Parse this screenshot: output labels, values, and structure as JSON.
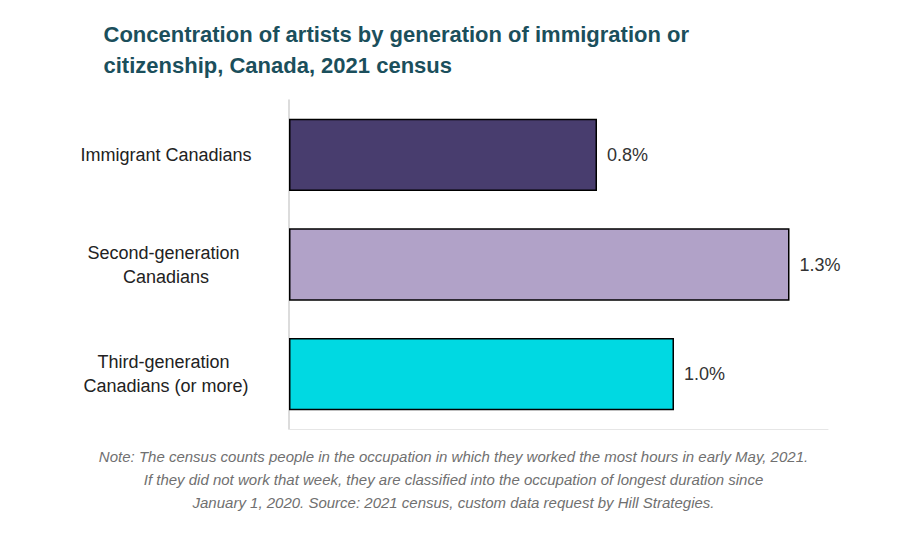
{
  "chart_data": {
    "type": "bar",
    "title": "Concentration of artists by generation of immigration or citizenship, Canada, 2021 census",
    "note": "Note: The census counts people in the occupation in which they worked the most hours in early May, 2021. If they did not work that week, they are classified into the occupation of longest duration since January 1, 2020. Source: 2021 census, custom data request by Hill Strategies.",
    "categories": [
      "Immigrant Canadians",
      "Second-generation Canadians",
      "Third-generation Canadians (or more)"
    ],
    "values": [
      0.8,
      1.3,
      1.0
    ],
    "value_labels": [
      "0.8%",
      "1.3%",
      "1.0%"
    ],
    "colors": [
      "#483d6e",
      "#b1a2c8",
      "#00d9e2"
    ],
    "orientation": "horizontal",
    "data_labels": true,
    "tick_labels": "y",
    "grid": false,
    "xlim": [
      0,
      1.4
    ]
  }
}
